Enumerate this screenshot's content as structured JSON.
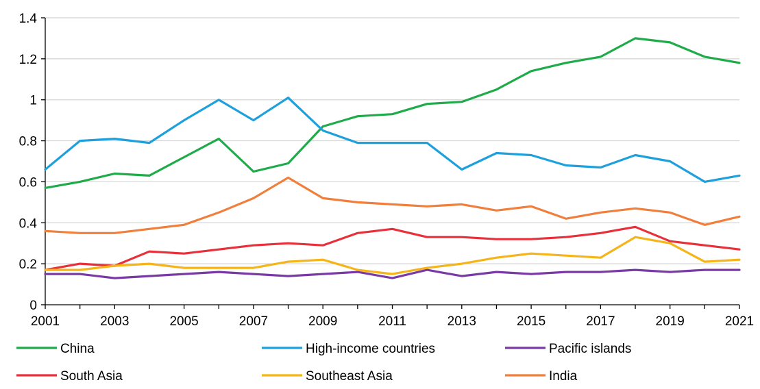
{
  "chart_data": {
    "type": "line",
    "x": [
      2001,
      2002,
      2003,
      2004,
      2005,
      2006,
      2007,
      2008,
      2009,
      2010,
      2011,
      2012,
      2013,
      2014,
      2015,
      2016,
      2017,
      2018,
      2019,
      2020,
      2021
    ],
    "x_tick_labels": [
      "2001",
      "2003",
      "2005",
      "2007",
      "2009",
      "2011",
      "2013",
      "2015",
      "2017",
      "2019",
      "2021"
    ],
    "y_tick_labels": [
      "0",
      "0.2",
      "0.4",
      "0.6",
      "0.8",
      "1",
      "1.2",
      "1.4"
    ],
    "xlim": [
      2001,
      2021
    ],
    "ylim": [
      0,
      1.4
    ],
    "grid": "horizontal",
    "legend": "bottom",
    "series": [
      {
        "name": "China",
        "color": "#1fab4a",
        "values": [
          0.57,
          0.6,
          0.64,
          0.63,
          0.72,
          0.81,
          0.65,
          0.69,
          0.87,
          0.92,
          0.93,
          0.98,
          0.99,
          1.05,
          1.14,
          1.18,
          1.21,
          1.3,
          1.28,
          1.21,
          1.18
        ]
      },
      {
        "name": "High-income countries",
        "color": "#1ea0dc",
        "values": [
          0.66,
          0.8,
          0.81,
          0.79,
          0.9,
          1.0,
          0.9,
          1.01,
          0.85,
          0.79,
          0.79,
          0.79,
          0.66,
          0.74,
          0.73,
          0.68,
          0.67,
          0.73,
          0.7,
          0.6,
          0.63
        ]
      },
      {
        "name": "Pacific islands",
        "color": "#7a3aa6",
        "values": [
          0.15,
          0.15,
          0.13,
          0.14,
          0.15,
          0.16,
          0.15,
          0.14,
          0.15,
          0.16,
          0.13,
          0.17,
          0.14,
          0.16,
          0.15,
          0.16,
          0.16,
          0.17,
          0.16,
          0.17,
          0.17
        ]
      },
      {
        "name": "South Asia",
        "color": "#e8303a",
        "values": [
          0.17,
          0.2,
          0.19,
          0.26,
          0.25,
          0.27,
          0.29,
          0.3,
          0.29,
          0.35,
          0.37,
          0.33,
          0.33,
          0.32,
          0.32,
          0.33,
          0.35,
          0.38,
          0.31,
          0.29,
          0.27
        ]
      },
      {
        "name": "Southeast Asia",
        "color": "#f5b417",
        "values": [
          0.17,
          0.17,
          0.19,
          0.2,
          0.18,
          0.18,
          0.18,
          0.21,
          0.22,
          0.17,
          0.15,
          0.18,
          0.2,
          0.23,
          0.25,
          0.24,
          0.23,
          0.33,
          0.3,
          0.21,
          0.22
        ]
      },
      {
        "name": "India",
        "color": "#f07f3c",
        "values": [
          0.36,
          0.35,
          0.35,
          0.37,
          0.39,
          0.45,
          0.52,
          0.62,
          0.52,
          0.5,
          0.49,
          0.48,
          0.49,
          0.46,
          0.48,
          0.42,
          0.45,
          0.47,
          0.45,
          0.39,
          0.43
        ]
      }
    ]
  }
}
